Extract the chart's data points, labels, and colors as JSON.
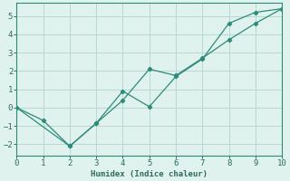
{
  "xlabel": "Humidex (Indice chaleur)",
  "xlim": [
    0,
    10
  ],
  "ylim": [
    -2.6,
    5.7
  ],
  "yticks": [
    -2,
    -1,
    0,
    1,
    2,
    3,
    4,
    5
  ],
  "xticks": [
    0,
    1,
    2,
    3,
    4,
    5,
    6,
    7,
    8,
    9,
    10
  ],
  "line1_x": [
    0,
    1,
    2,
    3,
    4,
    5,
    6,
    7,
    8,
    9,
    10
  ],
  "line1_y": [
    0.0,
    -0.7,
    -2.1,
    -0.85,
    0.9,
    0.05,
    1.7,
    2.65,
    4.6,
    5.2,
    5.4
  ],
  "line2_x": [
    0,
    2,
    3,
    4,
    5,
    6,
    7,
    8,
    9,
    10
  ],
  "line2_y": [
    0.0,
    -2.1,
    -0.85,
    0.4,
    2.1,
    1.75,
    2.7,
    3.7,
    4.6,
    5.4
  ],
  "color": "#2e8b7a",
  "bg_color": "#dff2ee",
  "grid_color": "#b8d8d2",
  "font_color": "#2e6b60",
  "font_family": "monospace"
}
